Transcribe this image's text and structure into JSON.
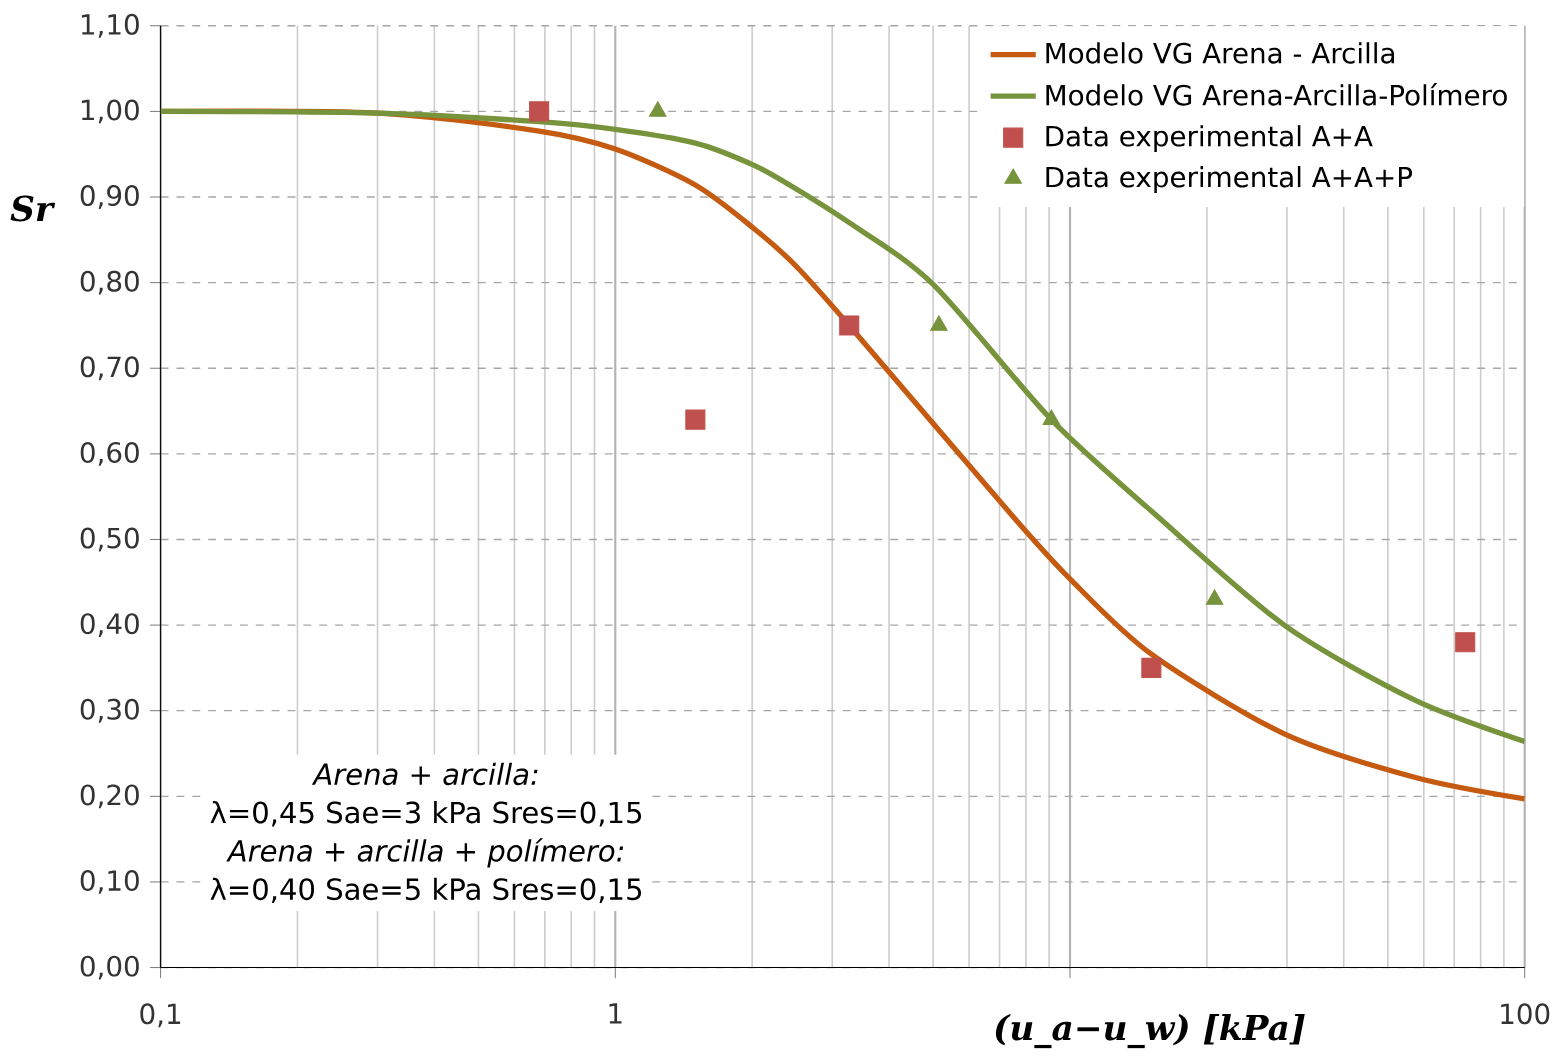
{
  "chart_data": {
    "type": "line",
    "xlabel": "(u_a−u_w)  [kPa]",
    "ylabel": "Sr",
    "annotations": [
      "Arena + arcilla:",
      "λ=0,45  Sae=3 kPa  Sres=0,15",
      "Arena + arcilla + polímero:",
      "λ=0,40  Sae=5 kPa  Sres=0,15"
    ],
    "log": "x",
    "grid": true,
    "legend": "top right",
    "xlim": [
      0.1,
      100
    ],
    "ylim": [
      0,
      1.1
    ],
    "xticks": [
      {
        "value": 0.1,
        "label": "0,1"
      },
      1,
      {
        "value": 10,
        "label": null
      },
      100
    ],
    "yticks": [
      {
        "value": 0,
        "label": "0,00"
      },
      {
        "value": 0.1,
        "label": "0,10"
      },
      {
        "value": 0.2,
        "label": "0,20"
      },
      {
        "value": 0.3,
        "label": "0,30"
      },
      {
        "value": 0.4,
        "label": "0,40"
      },
      {
        "value": 0.5,
        "label": "0,50"
      },
      {
        "value": 0.6,
        "label": "0,60"
      },
      {
        "value": 0.7,
        "label": "0,70"
      },
      {
        "value": 0.8,
        "label": "0,80"
      },
      {
        "value": 0.9,
        "label": "0,90"
      },
      {
        "value": 1.0,
        "label": "1,00"
      },
      {
        "value": 1.1,
        "label": "1,10"
      }
    ],
    "series": [
      {
        "name": "Modelo VG  Arena - Arcilla",
        "color": "#c55a11",
        "marker": "none",
        "x": [
          0.1,
          0.3,
          0.68,
          1.0,
          1.5,
          2.02,
          2.49,
          3.27,
          7.46,
          10,
          15.1,
          29.6,
          57.5,
          100
        ],
        "values": [
          1.0,
          0.998,
          0.977,
          0.956,
          0.914,
          0.863,
          0.82,
          0.75,
          0.528,
          0.454,
          0.366,
          0.273,
          0.222,
          0.197
        ]
      },
      {
        "name": "Modelo VG  Arena-Arcilla-Polímero",
        "color": "#77933c",
        "marker": "none",
        "x": [
          0.1,
          0.3,
          0.68,
          1.0,
          1.5,
          2.02,
          2.49,
          3.27,
          5.0,
          9.1,
          15.5,
          29.6,
          57.5,
          100
        ],
        "values": [
          1.0,
          0.998,
          0.988,
          0.979,
          0.963,
          0.937,
          0.91,
          0.87,
          0.798,
          0.64,
          0.528,
          0.4,
          0.312,
          0.264
        ]
      },
      {
        "name": "Data experimental A+A",
        "type": "scatter",
        "color": "#c0504d",
        "marker": "square",
        "x": [
          0.68,
          1.5,
          3.27,
          15.1,
          74
        ],
        "values": [
          1.0,
          0.64,
          0.75,
          0.35,
          0.38
        ]
      },
      {
        "name": "Data experimental A+A+P",
        "type": "scatter",
        "color": "#77933c",
        "marker": "triangle",
        "x": [
          1.24,
          5.15,
          9.1,
          20.8
        ],
        "values": [
          1.0,
          0.75,
          0.64,
          0.43
        ]
      }
    ]
  }
}
